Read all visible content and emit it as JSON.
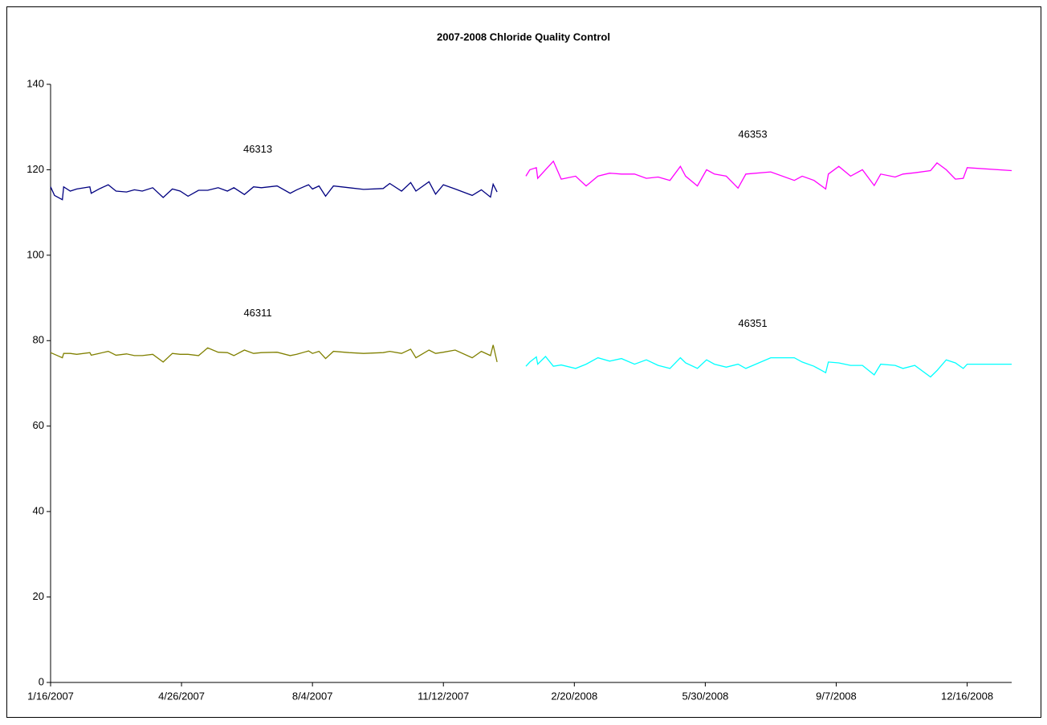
{
  "chart_data": {
    "type": "line",
    "title": "2007-2008 Chloride Quality Control",
    "x": [
      "2007-01-16",
      "2007-01-19",
      "2007-01-25",
      "2007-01-26",
      "2007-01-31",
      "2007-02-05",
      "2007-02-15",
      "2007-02-16",
      "2007-02-22",
      "2007-03-01",
      "2007-03-07",
      "2007-03-15",
      "2007-03-21",
      "2007-03-27",
      "2007-04-04",
      "2007-04-12",
      "2007-04-19",
      "2007-04-25",
      "2007-05-01",
      "2007-05-09",
      "2007-05-16",
      "2007-05-24",
      "2007-05-31",
      "2007-06-05",
      "2007-06-13",
      "2007-06-20",
      "2007-06-26",
      "2007-07-08",
      "2007-07-18",
      "2007-07-23",
      "2007-08-01",
      "2007-08-04",
      "2007-08-09",
      "2007-08-14",
      "2007-08-20",
      "2007-09-01",
      "2007-09-12",
      "2007-09-27",
      "2007-10-02",
      "2007-10-11",
      "2007-10-18",
      "2007-10-22",
      "2007-11-01",
      "2007-11-06",
      "2007-11-12",
      "2007-11-21",
      "2007-12-04",
      "2007-12-11",
      "2007-12-18",
      "2007-12-20",
      "2007-12-23",
      "2008-01-14",
      "2008-01-17",
      "2008-01-22",
      "2008-01-23",
      "2008-01-29",
      "2008-02-04",
      "2008-02-10",
      "2008-02-21",
      "2008-02-29",
      "2008-03-09",
      "2008-03-18",
      "2008-03-27",
      "2008-04-06",
      "2008-04-15",
      "2008-04-24",
      "2008-05-03",
      "2008-05-11",
      "2008-05-15",
      "2008-05-24",
      "2008-05-31",
      "2008-06-06",
      "2008-06-15",
      "2008-06-24",
      "2008-06-30",
      "2008-07-19",
      "2008-08-06",
      "2008-08-12",
      "2008-08-21",
      "2008-08-30",
      "2008-09-01",
      "2008-09-09",
      "2008-09-18",
      "2008-09-27",
      "2008-10-06",
      "2008-10-11",
      "2008-10-22",
      "2008-10-28",
      "2008-11-06",
      "2008-11-18",
      "2008-11-23",
      "2008-11-30",
      "2008-12-07",
      "2008-12-13",
      "2008-12-16",
      "2009-01-19"
    ],
    "series": [
      {
        "name": "46313",
        "color": "#000080",
        "values": [
          116,
          114,
          113,
          116,
          115,
          115.5,
          116,
          114.5,
          115.5,
          116.5,
          115,
          114.8,
          115.3,
          115,
          115.8,
          113.5,
          115.5,
          115,
          113.8,
          115.2,
          115.2,
          115.8,
          115,
          115.8,
          114.2,
          116,
          115.8,
          116.2,
          114.5,
          115.3,
          116.5,
          115.5,
          116.2,
          113.8,
          116.2,
          115.8,
          115.4,
          115.6,
          116.8,
          115,
          117,
          115,
          117.2,
          114.3,
          116.5,
          115.5,
          114,
          115.3,
          113.6,
          116.6,
          114.8,
          null,
          null,
          null,
          null,
          null,
          null,
          null,
          null,
          null,
          null,
          null,
          null,
          null,
          null,
          null,
          null,
          null,
          null,
          null,
          null,
          null,
          null,
          null,
          null,
          null,
          null,
          null,
          null,
          null,
          null,
          null,
          null,
          null,
          null,
          null,
          null,
          null,
          null,
          null,
          null,
          null,
          null,
          null,
          null,
          null
        ]
      },
      {
        "name": "46311",
        "color": "#808000",
        "values": [
          77.2,
          76.8,
          76,
          77,
          77,
          76.8,
          77.2,
          76.6,
          77,
          77.5,
          76.6,
          76.9,
          76.5,
          76.5,
          76.8,
          75,
          77,
          76.8,
          76.8,
          76.5,
          78.3,
          77.3,
          77.2,
          76.5,
          77.8,
          77,
          77.2,
          77.3,
          76.5,
          76.8,
          77.6,
          77,
          77.5,
          75.8,
          77.5,
          77.2,
          77,
          77.2,
          77.5,
          77,
          78,
          76,
          77.8,
          77,
          77.3,
          77.8,
          76,
          77.5,
          76.5,
          79,
          75,
          null,
          null,
          null,
          null,
          null,
          null,
          null,
          null,
          null,
          null,
          null,
          null,
          null,
          null,
          null,
          null,
          null,
          null,
          null,
          null,
          null,
          null,
          null,
          null,
          null,
          null,
          null,
          null,
          null,
          null,
          null,
          null,
          null,
          null,
          null,
          null,
          null,
          null,
          null,
          null,
          null,
          null,
          null,
          null,
          null
        ]
      },
      {
        "name": "46353",
        "color": "#FF00FF",
        "values": [
          null,
          null,
          null,
          null,
          null,
          null,
          null,
          null,
          null,
          null,
          null,
          null,
          null,
          null,
          null,
          null,
          null,
          null,
          null,
          null,
          null,
          null,
          null,
          null,
          null,
          null,
          null,
          null,
          null,
          null,
          null,
          null,
          null,
          null,
          null,
          null,
          null,
          null,
          null,
          null,
          null,
          null,
          null,
          null,
          null,
          null,
          null,
          null,
          null,
          null,
          null,
          118.5,
          120,
          120.5,
          118,
          120,
          122,
          117.8,
          118.5,
          116.2,
          118.5,
          119.2,
          119,
          119,
          118,
          118.3,
          117.5,
          120.8,
          118.5,
          116.2,
          120,
          119,
          118.5,
          115.7,
          119,
          119.5,
          117.5,
          118.5,
          117.5,
          115.5,
          119,
          120.8,
          118.5,
          120,
          116.3,
          119,
          118.3,
          119,
          119.3,
          119.8,
          121.6,
          120,
          117.8,
          118,
          120.5,
          119.8
        ]
      },
      {
        "name": "46351",
        "color": "#00FFFF",
        "values": [
          null,
          null,
          null,
          null,
          null,
          null,
          null,
          null,
          null,
          null,
          null,
          null,
          null,
          null,
          null,
          null,
          null,
          null,
          null,
          null,
          null,
          null,
          null,
          null,
          null,
          null,
          null,
          null,
          null,
          null,
          null,
          null,
          null,
          null,
          null,
          null,
          null,
          null,
          null,
          null,
          null,
          null,
          null,
          null,
          null,
          null,
          null,
          null,
          null,
          null,
          null,
          74,
          75,
          76.2,
          74.5,
          76.3,
          74,
          74.3,
          73.5,
          74.5,
          76,
          75.2,
          75.8,
          74.5,
          75.5,
          74.2,
          73.5,
          76,
          74.8,
          73.5,
          75.5,
          74.5,
          73.8,
          74.5,
          73.5,
          76,
          76,
          75,
          74,
          72.5,
          75,
          74.8,
          74.2,
          74.2,
          72,
          74.5,
          74.2,
          73.5,
          74.2,
          71.5,
          73,
          75.5,
          74.8,
          73.5,
          74.5,
          74.5
        ]
      }
    ],
    "xlim": [
      "2007-01-16",
      "2009-01-19"
    ],
    "xticks": [
      {
        "value": "2007-01-16",
        "label": "1/16/2007"
      },
      {
        "value": "2007-04-26",
        "label": "4/26/2007"
      },
      {
        "value": "2007-08-04",
        "label": "8/4/2007"
      },
      {
        "value": "2007-11-12",
        "label": "11/12/2007"
      },
      {
        "value": "2008-02-20",
        "label": "2/20/2008"
      },
      {
        "value": "2008-05-30",
        "label": "5/30/2008"
      },
      {
        "value": "2008-09-07",
        "label": "9/7/2008"
      },
      {
        "value": "2008-12-16",
        "label": "12/16/2008"
      }
    ],
    "ylim": [
      0,
      140
    ],
    "yticks": [
      0,
      20,
      40,
      60,
      80,
      100,
      120,
      140
    ]
  }
}
